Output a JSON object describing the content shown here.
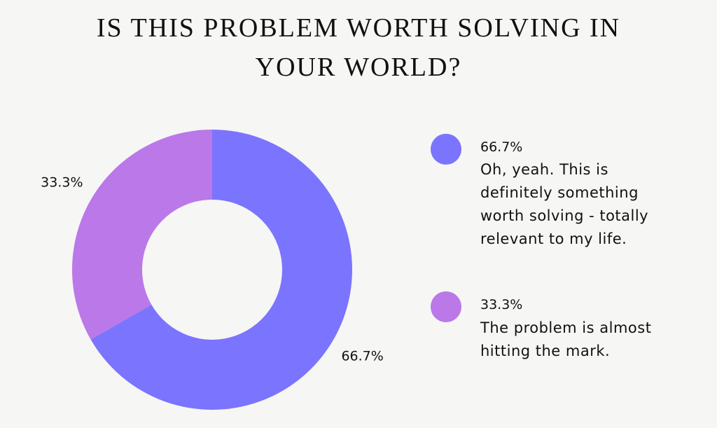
{
  "chart_data": {
    "type": "donut",
    "title": "IS THIS PROBLEM WORTH SOLVING IN YOUR WORLD?",
    "categories": [
      "Oh, yeah. This is definitely something worth solving - totally relevant to my life.",
      "The problem is almost hitting the mark."
    ],
    "values": [
      66.7,
      33.3
    ],
    "value_labels": [
      "66.7%",
      "33.3%"
    ],
    "colors": [
      "#7b74fe",
      "#bb78e8"
    ]
  }
}
